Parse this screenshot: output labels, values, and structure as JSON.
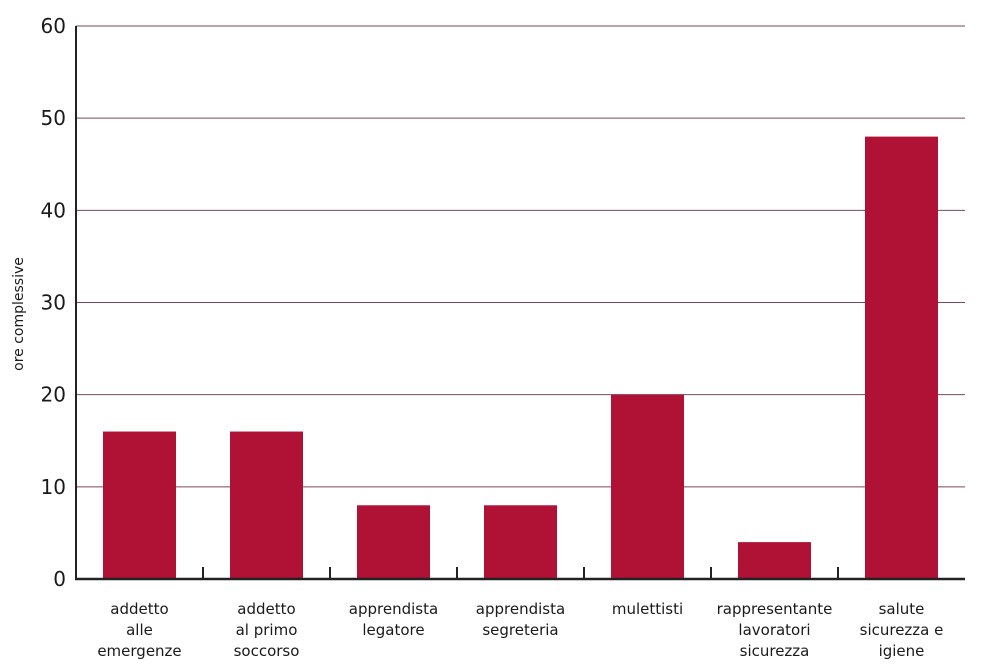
{
  "chart_data": {
    "type": "bar",
    "title": "",
    "xlabel": "",
    "ylabel": "ore complessive",
    "ylim": [
      0,
      60
    ],
    "yticks": [
      0,
      10,
      20,
      30,
      40,
      50,
      60
    ],
    "grid": true,
    "categories": [
      [
        "addetto",
        "alle",
        "emergenze"
      ],
      [
        "addetto",
        "al primo",
        "soccorso"
      ],
      [
        "apprendista",
        "legatore"
      ],
      [
        "apprendista",
        "segreteria"
      ],
      [
        "mulettisti"
      ],
      [
        "rappresentante",
        "lavoratori",
        "sicurezza"
      ],
      [
        "salute",
        "sicurezza e",
        "igiene"
      ]
    ],
    "values": [
      16,
      16,
      8,
      8,
      20,
      4,
      48
    ],
    "colors": {
      "bar": "#b01236",
      "gridline": "#7a4a55",
      "axis": "#222222"
    }
  }
}
